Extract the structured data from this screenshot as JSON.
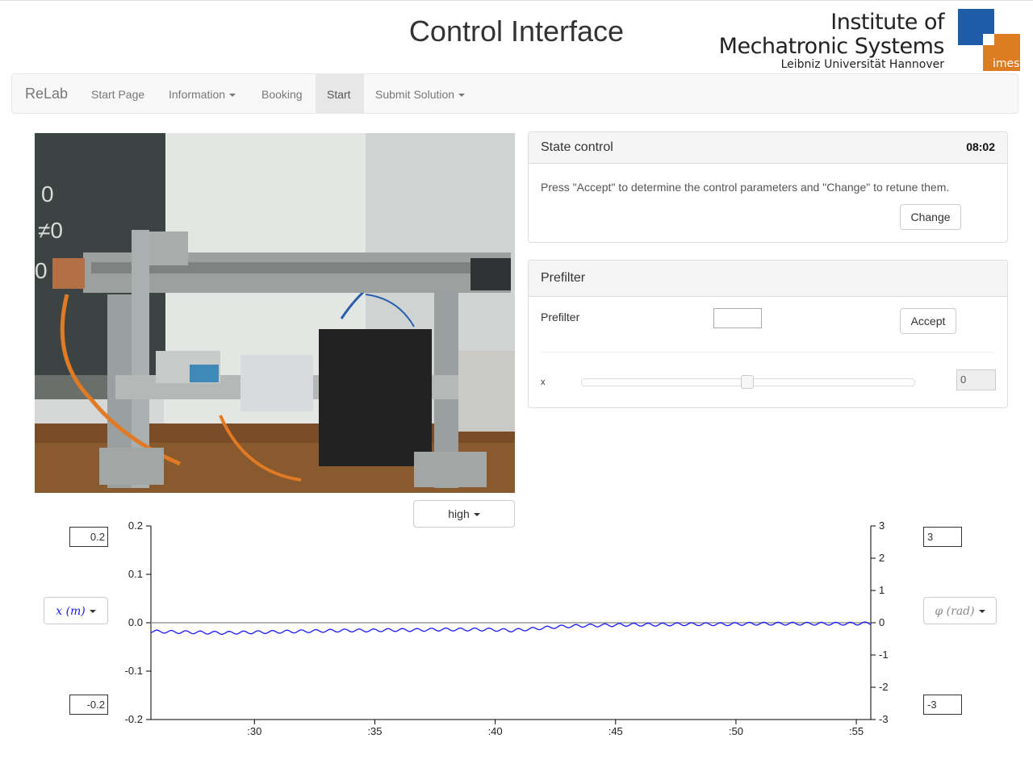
{
  "header": {
    "title": "Control Interface",
    "logo": {
      "line1": "Institute of",
      "line2": "Mechatronic Systems",
      "line3": "Leibniz Universität Hannover",
      "badge": "imes",
      "colors": {
        "blue": "#1f5ca8",
        "orange": "#de7c22"
      }
    }
  },
  "nav": {
    "brand": "ReLab",
    "items": [
      {
        "label": "Start Page",
        "dropdown": false,
        "active": false
      },
      {
        "label": "Information",
        "dropdown": true,
        "active": false
      },
      {
        "label": "Booking",
        "dropdown": false,
        "active": false
      },
      {
        "label": "Start",
        "dropdown": false,
        "active": true
      },
      {
        "label": "Submit Solution",
        "dropdown": true,
        "active": false
      }
    ]
  },
  "state_control": {
    "title": "State control",
    "timer": "08:02",
    "description": "Press \"Accept\" to determine the control parameters and \"Change\" to retune them.",
    "change_label": "Change"
  },
  "prefilter": {
    "title": "Prefilter",
    "field_label": "Prefilter",
    "field_value": "",
    "accept_label": "Accept",
    "slider_label": "x",
    "slider_value": "0",
    "slider_fraction": 0.5
  },
  "quality": {
    "selected": "high"
  },
  "plot_controls": {
    "left_max": "0.2",
    "left_min": "-0.2",
    "left_axis_label": "x (m)",
    "right_max": "3",
    "right_min": "-3",
    "right_axis_label": "φ (rad)"
  },
  "chart_data": {
    "type": "line",
    "x_tick_labels": [
      ":30",
      ":35",
      ":40",
      ":45",
      ":50",
      ":55"
    ],
    "x_tick_values": [
      30,
      35,
      40,
      45,
      50,
      55
    ],
    "xlim": [
      25.7,
      55.6
    ],
    "left_axis": {
      "ticks": [
        "0.2",
        "0.1",
        "0.0",
        "-0.1",
        "-0.2"
      ],
      "ylim": [
        -0.2,
        0.2
      ]
    },
    "right_axis": {
      "ticks": [
        "3",
        "2",
        "1",
        "0",
        "-1",
        "-2",
        "-3"
      ],
      "ylim": [
        -3,
        3
      ]
    },
    "series": [
      {
        "axis": "left",
        "color": "#1a1aff",
        "x": [
          25.7,
          26.7,
          27.7,
          28.7,
          29.7,
          30.7,
          31.7,
          32.7,
          33.7,
          34.7,
          35.7,
          36.7,
          37.7,
          38.7,
          39.7,
          40.7,
          41.7,
          42.7,
          43.7,
          44.7,
          45.7,
          46.7,
          47.7,
          48.7,
          49.7,
          50.7,
          51.7,
          52.7,
          53.7,
          54.7,
          55.6
        ],
        "y": [
          -0.018,
          -0.019,
          -0.02,
          -0.021,
          -0.02,
          -0.019,
          -0.018,
          -0.017,
          -0.016,
          -0.016,
          -0.015,
          -0.015,
          -0.014,
          -0.014,
          -0.014,
          -0.016,
          -0.012,
          -0.008,
          -0.006,
          -0.005,
          -0.004,
          -0.004,
          -0.003,
          -0.003,
          -0.003,
          -0.002,
          -0.002,
          -0.002,
          -0.002,
          -0.002,
          -0.001
        ],
        "oscillation_amplitude": 0.003,
        "oscillation_period": 0.6
      },
      {
        "axis": "right",
        "color": "#999999",
        "x": [
          25.7,
          55.6
        ],
        "y": [
          0,
          0
        ]
      }
    ]
  }
}
